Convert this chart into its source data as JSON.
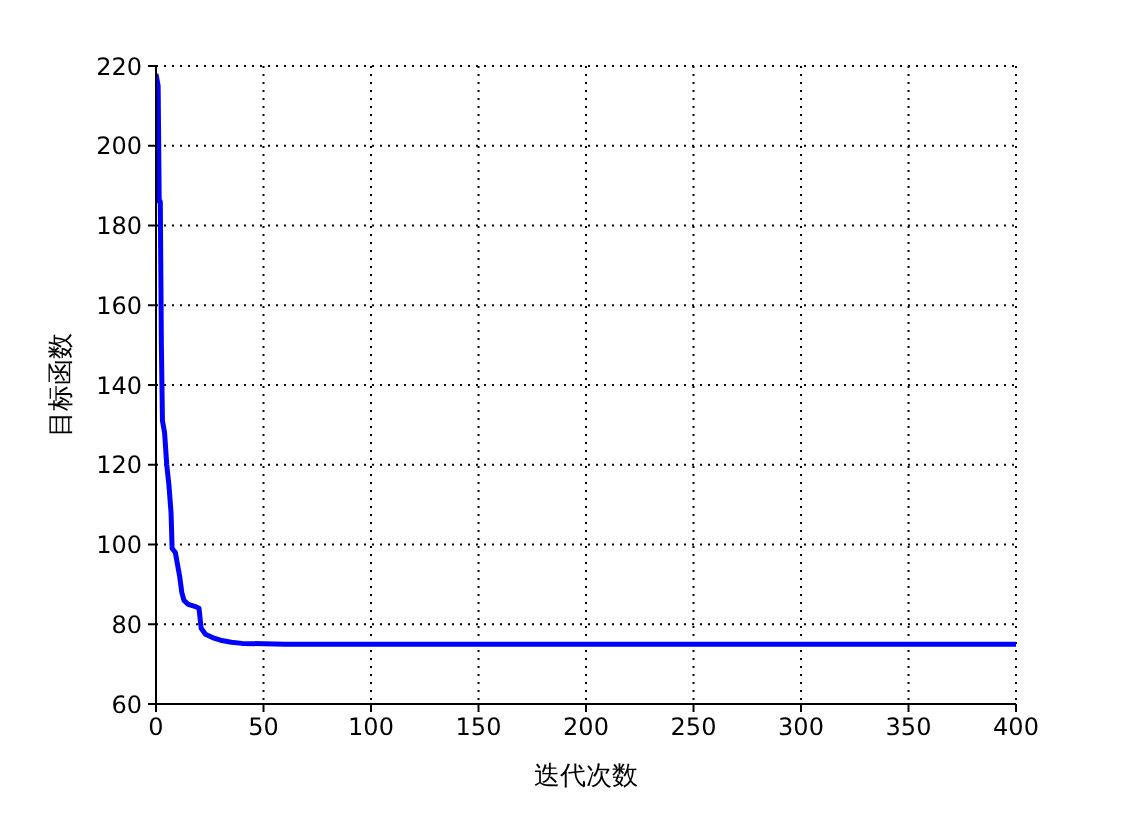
{
  "chart_data": {
    "type": "line",
    "xlabel": "迭代次数",
    "ylabel": "目标函数",
    "x": [
      0,
      1,
      1.5,
      2,
      2.5,
      3,
      4,
      5,
      6,
      7,
      7.5,
      9,
      10,
      11,
      12,
      13,
      15,
      18,
      20,
      21,
      23,
      27,
      30,
      35,
      40,
      60,
      100,
      200,
      300,
      400
    ],
    "series": [
      {
        "color": "#0000ff",
        "values": [
          218,
          215,
          186,
          186,
          150,
          131,
          128,
          120,
          115,
          108,
          99,
          98,
          95,
          92,
          88,
          86,
          85,
          84.5,
          84,
          79,
          77.5,
          76.5,
          76,
          75.5,
          75.2,
          75,
          75,
          75,
          75,
          75
        ]
      }
    ],
    "xlim": [
      0,
      400
    ],
    "xticks": [
      0,
      50,
      100,
      150,
      200,
      250,
      300,
      350,
      400
    ],
    "ylim": [
      60,
      220
    ],
    "yticks": [
      60,
      80,
      100,
      120,
      140,
      160,
      180,
      200,
      220
    ],
    "grid": true,
    "legend": false,
    "marker": "none",
    "line_style": "solid"
  }
}
